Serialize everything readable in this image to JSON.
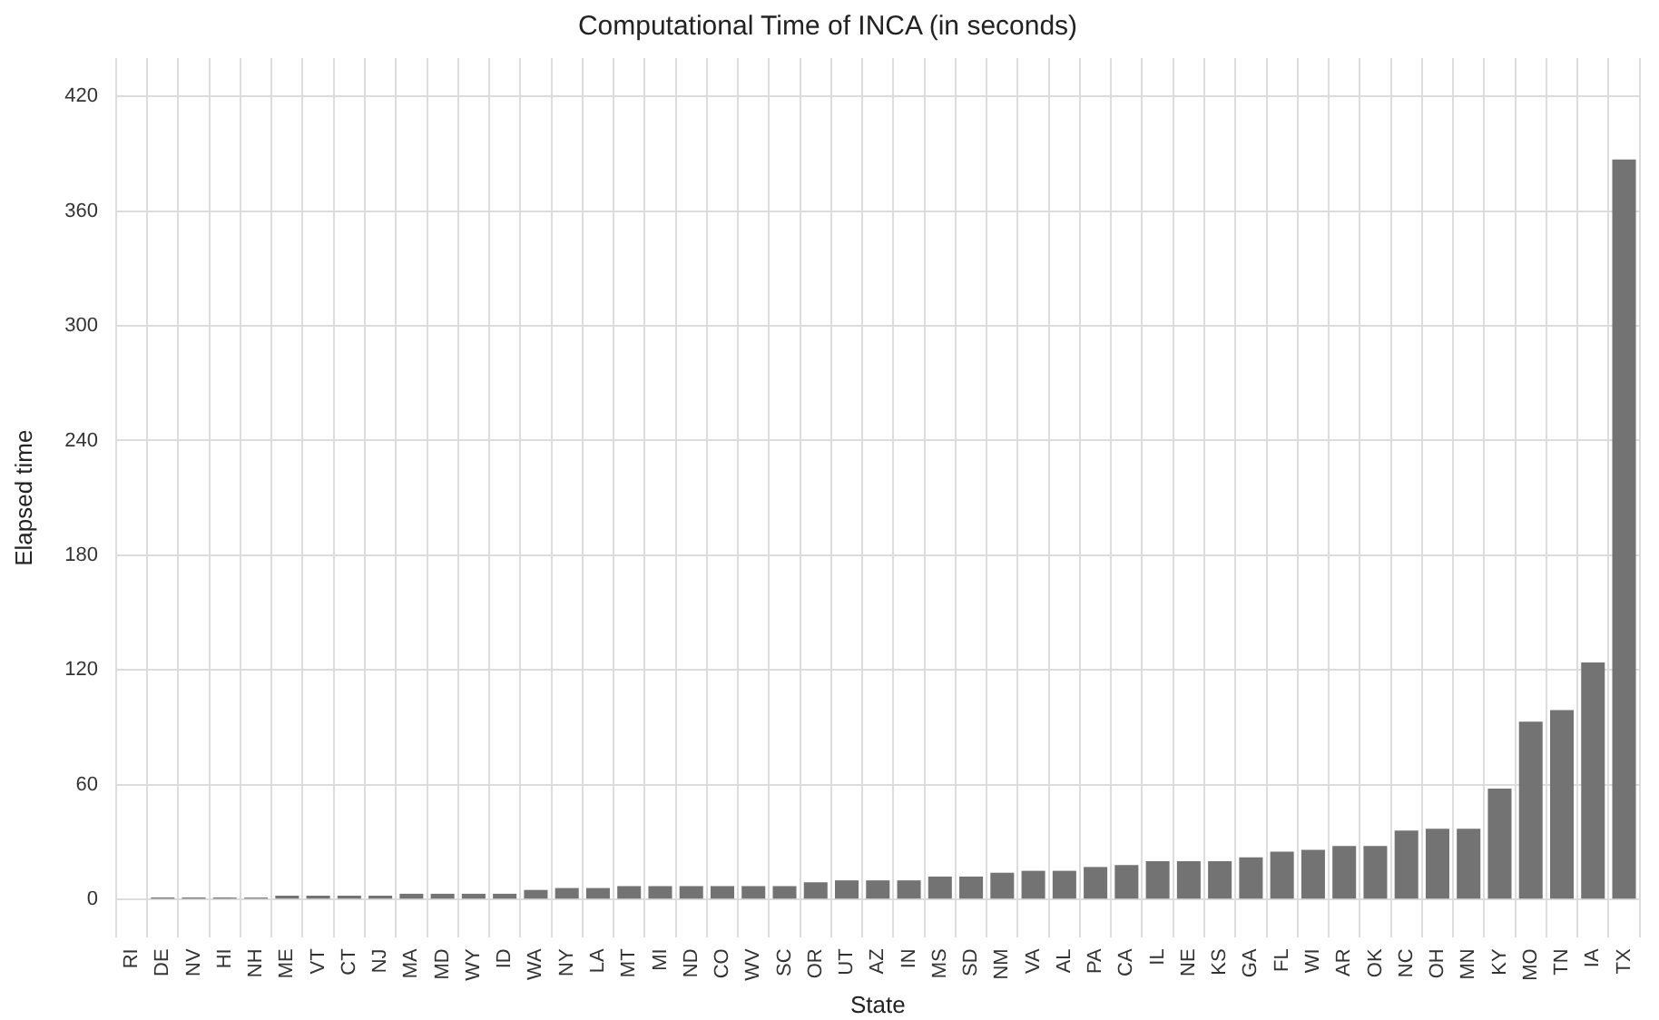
{
  "chart_data": {
    "type": "bar",
    "title": "Computational Time of INCA (in seconds)",
    "xlabel": "State",
    "ylabel": "Elapsed time",
    "categories": [
      "RI",
      "DE",
      "NV",
      "HI",
      "NH",
      "ME",
      "VT",
      "CT",
      "NJ",
      "MA",
      "MD",
      "WY",
      "ID",
      "WA",
      "NY",
      "LA",
      "MT",
      "MI",
      "ND",
      "CO",
      "WV",
      "SC",
      "OR",
      "UT",
      "AZ",
      "IN",
      "MS",
      "SD",
      "NM",
      "VA",
      "AL",
      "PA",
      "CA",
      "IL",
      "NE",
      "KS",
      "GA",
      "FL",
      "WI",
      "AR",
      "OK",
      "NC",
      "OH",
      "MN",
      "KY",
      "MO",
      "TN",
      "IA",
      "TX"
    ],
    "values": [
      0,
      1,
      1,
      1,
      1,
      2,
      2,
      2,
      2,
      3,
      3,
      3,
      3,
      5,
      6,
      6,
      7,
      7,
      7,
      7,
      7,
      7,
      9,
      10,
      10,
      10,
      12,
      12,
      14,
      15,
      15,
      17,
      18,
      20,
      20,
      20,
      22,
      25,
      26,
      28,
      28,
      36,
      37,
      37,
      58,
      93,
      99,
      124,
      387
    ],
    "color": "#737373",
    "ylim": [
      -20,
      440
    ],
    "yticks": [
      0,
      60,
      120,
      180,
      240,
      300,
      360,
      420
    ],
    "grid": true
  }
}
